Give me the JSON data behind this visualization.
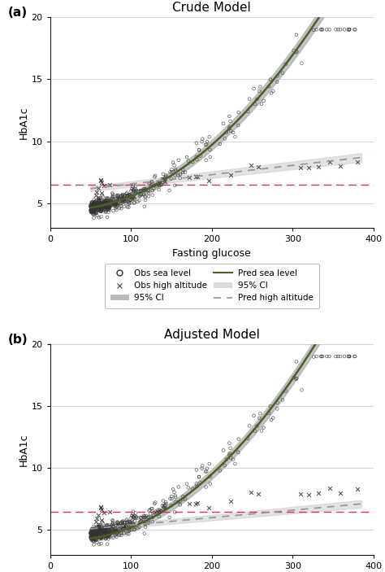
{
  "title_a": "Crude Model",
  "title_b": "Adjusted Model",
  "label_a": "(a)",
  "label_b": "(b)",
  "xlabel": "Fasting glucose",
  "ylabel": "HbA1c",
  "xlim": [
    0,
    400
  ],
  "ylim": [
    3,
    20
  ],
  "yticks": [
    5,
    10,
    15,
    20
  ],
  "xticks": [
    0,
    100,
    200,
    300,
    400
  ],
  "hline_y": 6.5,
  "hline_color": "#cc3366",
  "grid_color": "#cccccc",
  "sea_level_color": "#4a5e2a",
  "high_alt_color": "#999999",
  "ci_sea_color": "#aaaaaa",
  "ci_high_color": "#cccccc",
  "n_sea": 500,
  "n_high": 25,
  "bg_color": "#ffffff",
  "crude_sea_a": 4.5,
  "crude_sea_b": -0.005,
  "crude_sea_c": 0.000155,
  "crude_high_a": 5.8,
  "crude_high_b": 0.0075,
  "adj_sea_a": 4.3,
  "adj_sea_b": -0.008,
  "adj_sea_c": 0.00017,
  "adj_high_a": 4.8,
  "adj_high_b": 0.006
}
